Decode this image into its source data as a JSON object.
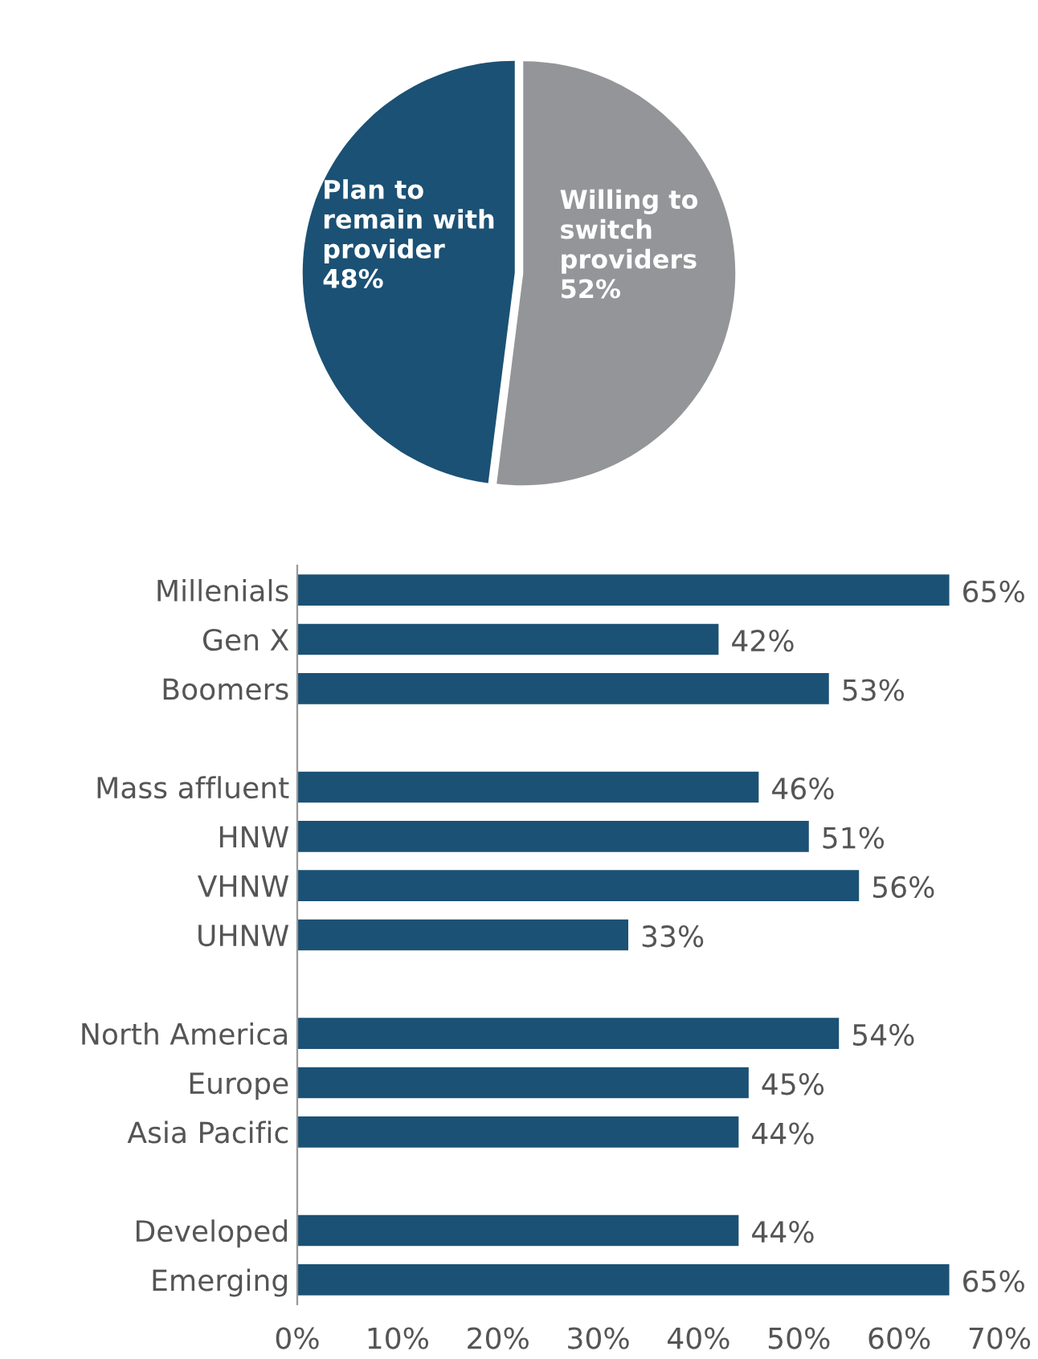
{
  "chart_data": [
    {
      "type": "pie",
      "categories": [
        "Plan to\nremain with\nprovider",
        "Willing to\nswitch\nproviders"
      ],
      "values": [
        48,
        52
      ],
      "colors": [
        "#1b5174",
        "#939598"
      ],
      "value_labels": [
        "48%",
        "52%"
      ]
    },
    {
      "type": "bar",
      "orientation": "horizontal",
      "categories": [
        "Millenials",
        "Gen X",
        "Boomers",
        null,
        "Mass affluent",
        "HNW",
        "VHNW",
        "UHNW",
        null,
        "North America",
        "Europe",
        "Asia Pacific",
        null,
        "Developed",
        "Emerging"
      ],
      "values": [
        65,
        42,
        53,
        null,
        46,
        51,
        56,
        33,
        null,
        54,
        45,
        44,
        null,
        44,
        65
      ],
      "value_labels": [
        "65%",
        "42%",
        "53%",
        null,
        "46%",
        "51%",
        "56%",
        "33%",
        null,
        "54%",
        "45%",
        "44%",
        null,
        "44%",
        "65%"
      ],
      "color": "#1b5174",
      "xlim": [
        0,
        70
      ],
      "xticks": [
        {
          "value": 0,
          "label": "0%"
        },
        {
          "value": 10,
          "label": "10%"
        },
        {
          "value": 20,
          "label": "20%"
        },
        {
          "value": 30,
          "label": "30%"
        },
        {
          "value": 40,
          "label": "40%"
        },
        {
          "value": 50,
          "label": "50%"
        },
        {
          "value": 60,
          "label": "60%"
        },
        {
          "value": 70,
          "label": "70%"
        }
      ],
      "grid": false
    }
  ]
}
